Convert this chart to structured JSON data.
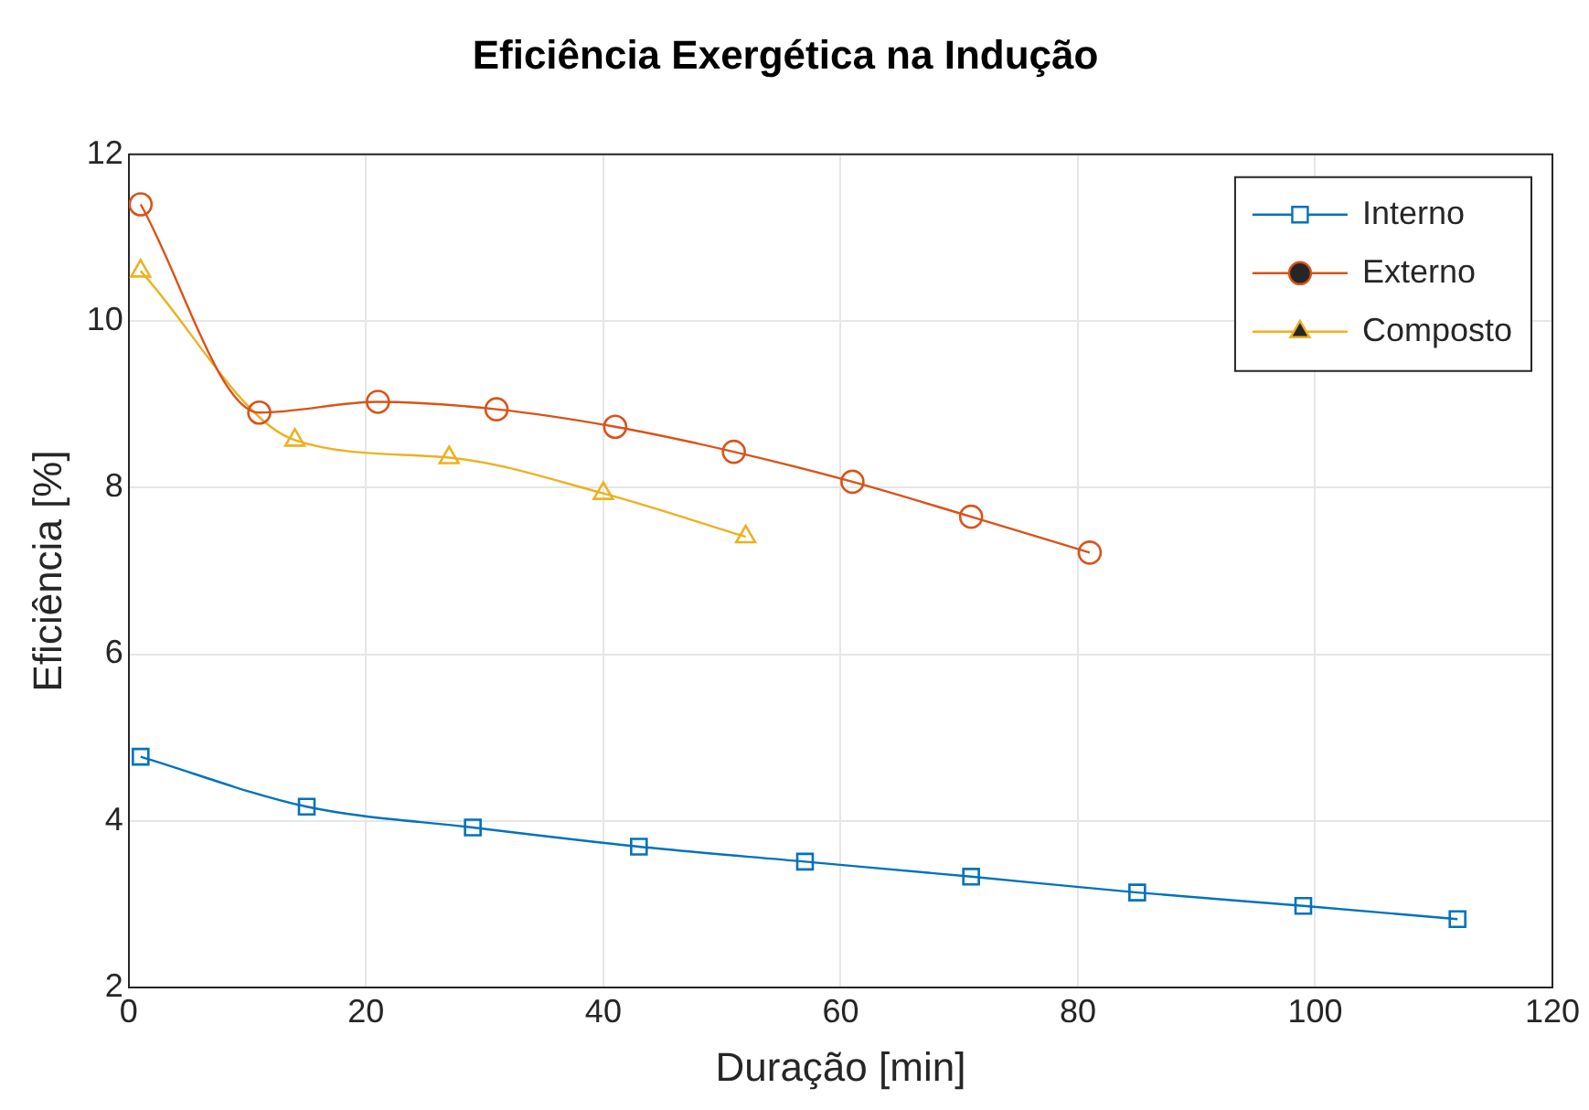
{
  "chart_data": {
    "type": "line",
    "title": "Eficiência Exergética na Indução",
    "xlabel": "Duração [min]",
    "ylabel": "Eficiência [%]",
    "xlim": [
      0,
      120
    ],
    "xticks": [
      0,
      20,
      40,
      60,
      80,
      100,
      120
    ],
    "ylim": [
      2,
      12
    ],
    "yticks": [
      2,
      4,
      6,
      8,
      10,
      12
    ],
    "grid": true,
    "legend": "top right",
    "line_style": "solid",
    "series": [
      {
        "name": "Interno",
        "color": "#0072bd",
        "marker": "square",
        "x": [
          1,
          15,
          29,
          43,
          57,
          71,
          85,
          99,
          112
        ],
        "values": [
          4.77,
          4.17,
          3.92,
          3.69,
          3.51,
          3.33,
          3.14,
          2.98,
          2.82
        ]
      },
      {
        "name": "Externo",
        "color": "#d95319",
        "marker": "circle",
        "x": [
          1,
          11,
          21,
          31,
          41,
          51,
          61,
          71,
          81
        ],
        "values": [
          11.4,
          8.9,
          9.03,
          8.94,
          8.73,
          8.43,
          8.07,
          7.65,
          7.22
        ]
      },
      {
        "name": "Composto",
        "color": "#edb120",
        "marker": "triangle",
        "x": [
          1,
          14,
          27,
          40,
          52
        ],
        "values": [
          10.6,
          8.57,
          8.36,
          7.93,
          7.41
        ]
      }
    ]
  }
}
